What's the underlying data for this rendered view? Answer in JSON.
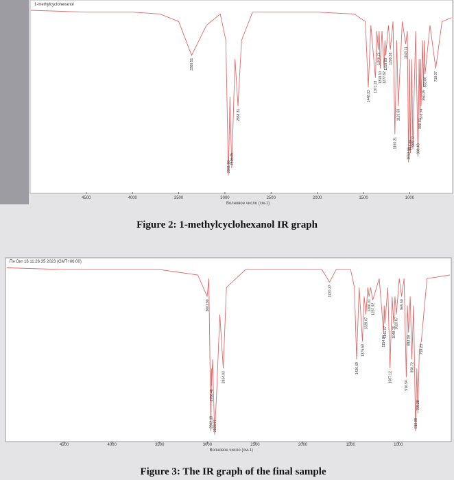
{
  "chart_data": [
    {
      "type": "line",
      "title": "1-methylcyclohexanol",
      "xlabel": "Волновое число (см-1)",
      "xlim": [
        5100,
        550
      ],
      "ylim": [
        0,
        100
      ],
      "xticks": [
        4500,
        4000,
        3500,
        3000,
        2500,
        2000,
        1500,
        1000
      ],
      "series": [
        {
          "color": "#e06868",
          "x": [
            5100,
            4500,
            4000,
            3700,
            3500,
            3360.51,
            3200,
            3050,
            2990,
            2961.9,
            2945,
            2926.25,
            2890,
            2858.31,
            2820,
            2700,
            2000,
            1600,
            1480,
            1448.33,
            1420,
            1371.28,
            1355,
            1340.23,
            1330,
            1319.1,
            1300,
            1277.62,
            1268,
            1259.89,
            1230,
            1209.88,
            1180,
            1160.21,
            1140,
            1123.83,
            1080,
            1043.11,
            1025,
            1012.16,
            1000,
            991.29,
            978,
            965.77,
            935,
            909.4,
            898,
            888.83,
            882,
            876.74,
            862,
            850.35,
            842,
            833.66,
            780,
            718.07,
            650,
            550
          ],
          "values": [
            96,
            95,
            95,
            94,
            90,
            72,
            88,
            94,
            80,
            8,
            50,
            12,
            70,
            45,
            80,
            95,
            95,
            94,
            90,
            55,
            88,
            60,
            85,
            75,
            85,
            65,
            85,
            65,
            80,
            72,
            88,
            75,
            90,
            30,
            80,
            45,
            90,
            78,
            85,
            15,
            70,
            20,
            70,
            22,
            85,
            18,
            70,
            40,
            70,
            45,
            80,
            55,
            80,
            62,
            88,
            65,
            90,
            92
          ]
        }
      ],
      "peaks": [
        3360.51,
        {
          "value": 2961.9,
          "label": "2961.90"
        },
        2926.25,
        2858.31,
        1448.33,
        1371.28,
        1340.23,
        {
          "value": 1319.1,
          "label": "1319.10"
        },
        1277.62,
        1259.89,
        1209.88,
        1160.21,
        1123.83,
        1043.11,
        1012.16,
        991.29,
        965.77,
        {
          "value": 909.4,
          "label": "909.40"
        },
        888.83,
        876.74,
        850.35,
        833.66,
        718.07
      ]
    },
    {
      "type": "line",
      "title": "Пн Окт 16 11:26:35 2023 (GMT+06:00)",
      "xlabel": "Волновое число (см-1)",
      "xlim": [
        5100,
        460
      ],
      "ylim": [
        0,
        100
      ],
      "xticks": [
        4500,
        4000,
        3500,
        3000,
        2500,
        2000,
        1500,
        1000
      ],
      "series": [
        {
          "color": "#e06868",
          "x": [
            5100,
            4500,
            3500,
            3100,
            3001.9,
            2985,
            2962.18,
            2957,
            2956.46,
            2945,
            2923.57,
            2900,
            2870,
            2834.03,
            2800,
            2600,
            1800,
            1720.37,
            1650,
            1500,
            1460,
            1436.69,
            1410,
            1375.59,
            1358,
            1339.07,
            1320,
            1306.31,
            1290,
            1267.92,
            1200,
            1154.84,
            1148,
            1141.07,
            1110,
            1087.12,
            1065,
            1048.76,
            1035,
            1020.87,
            990,
            965.5,
            940,
            916.54,
            905,
            893.09,
            875,
            858.72,
            840,
            818.89,
            806,
            795.28,
            780,
            759.23,
            700,
            460
          ],
          "values": [
            96,
            95,
            95,
            92,
            80,
            90,
            5,
            40,
            30,
            45,
            3,
            30,
            70,
            40,
            85,
            95,
            95,
            88,
            95,
            95,
            85,
            45,
            85,
            55,
            80,
            70,
            85,
            80,
            85,
            78,
            90,
            60,
            75,
            65,
            85,
            40,
            80,
            65,
            80,
            70,
            90,
            80,
            90,
            35,
            75,
            60,
            80,
            45,
            75,
            5,
            40,
            15,
            50,
            55,
            90,
            92
          ]
        }
      ],
      "peaks": [
        {
          "value": 3001.9,
          "label": "3001.90"
        },
        2962.18,
        2923.57,
        2956.46,
        2834.03,
        1720.37,
        1436.69,
        1375.59,
        1339.07,
        1306.31,
        1267.92,
        1154.84,
        1141.07,
        1087.12,
        1048.76,
        1020.87,
        {
          "value": 965.5,
          "label": "965.50"
        },
        916.54,
        893.09,
        858.72,
        818.89,
        795.28,
        759.23
      ]
    }
  ],
  "captions": [
    "Figure 2: 1-methylcyclohexanol IR graph",
    "Figure 3: The IR graph of the final sample"
  ]
}
